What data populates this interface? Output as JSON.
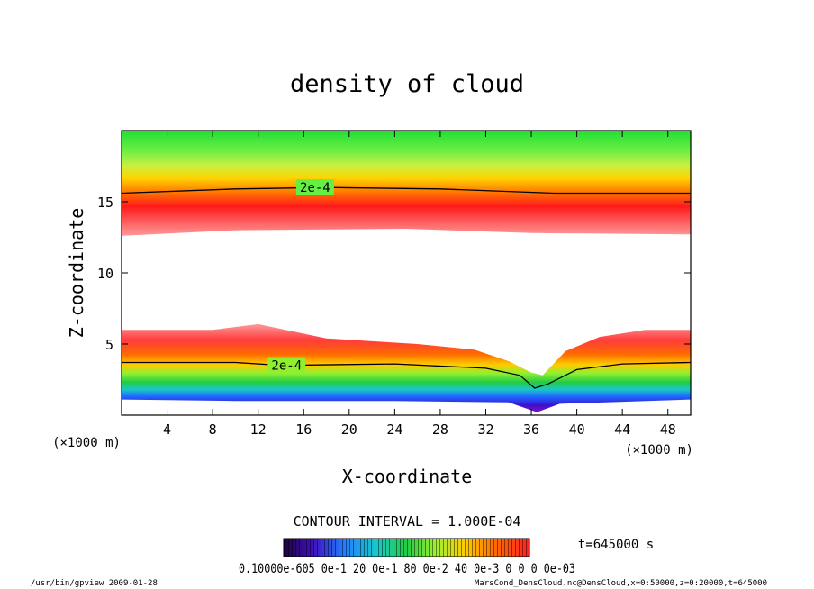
{
  "chart_data": {
    "type": "heatmap",
    "title": "density of cloud",
    "xlabel": "X-coordinate",
    "ylabel": "Z-coordinate",
    "x_unit_left": "(×1000 m)",
    "x_unit_right": "(×1000 m)",
    "xlim": [
      0,
      50
    ],
    "ylim": [
      0,
      20
    ],
    "x_ticks": [
      4,
      8,
      12,
      16,
      20,
      24,
      28,
      32,
      36,
      40,
      44,
      48
    ],
    "y_ticks": [
      5,
      10,
      15
    ],
    "contour_interval_text": "CONTOUR INTERVAL = 1.000E-04",
    "time_label": "t=645000 s",
    "colorbar_label": "0.10000e-605 0e-1 20 0e-1 80 0e-2 40 0e-3 0 0 0 0e-03",
    "contour_labels": [
      {
        "text": "2e-4",
        "x": 17,
        "z": 16
      },
      {
        "text": "2e-4",
        "x": 14.5,
        "z": 3.5
      }
    ],
    "upper_layer": {
      "top_edge": 20,
      "contour_2e4": [
        [
          0,
          15.6
        ],
        [
          10,
          15.9
        ],
        [
          18,
          16.0
        ],
        [
          28,
          15.9
        ],
        [
          38,
          15.6
        ],
        [
          50,
          15.6
        ]
      ],
      "bottom_edge": [
        [
          0,
          12.6
        ],
        [
          10,
          13.0
        ],
        [
          25,
          13.1
        ],
        [
          36,
          12.8
        ],
        [
          50,
          12.7
        ]
      ]
    },
    "lower_layer": {
      "top_edge": [
        [
          0,
          6.0
        ],
        [
          8,
          6.0
        ],
        [
          12,
          6.4
        ],
        [
          18,
          5.4
        ],
        [
          26,
          5.0
        ],
        [
          31,
          4.6
        ],
        [
          34,
          3.8
        ],
        [
          36,
          3.0
        ],
        [
          37,
          2.8
        ],
        [
          39,
          4.5
        ],
        [
          42,
          5.5
        ],
        [
          46,
          6.0
        ],
        [
          50,
          6.0
        ]
      ],
      "contour_2e4": [
        [
          0,
          3.7
        ],
        [
          10,
          3.7
        ],
        [
          14,
          3.5
        ],
        [
          24,
          3.6
        ],
        [
          32,
          3.3
        ],
        [
          35,
          2.8
        ],
        [
          36.3,
          1.9
        ],
        [
          37.5,
          2.2
        ],
        [
          40,
          3.2
        ],
        [
          44,
          3.6
        ],
        [
          50,
          3.7
        ]
      ],
      "bottom_edge": [
        [
          0,
          1.1
        ],
        [
          10,
          1.0
        ],
        [
          24,
          1.0
        ],
        [
          34,
          0.9
        ],
        [
          36.5,
          0.2
        ],
        [
          38.5,
          0.8
        ],
        [
          50,
          1.1
        ]
      ]
    }
  },
  "footer": {
    "left": "/usr/bin/gpview  2009-01-28",
    "right": "MarsCond_DensCloud.nc@DensCloud,x=0:50000,z=0:20000,t=645000"
  }
}
